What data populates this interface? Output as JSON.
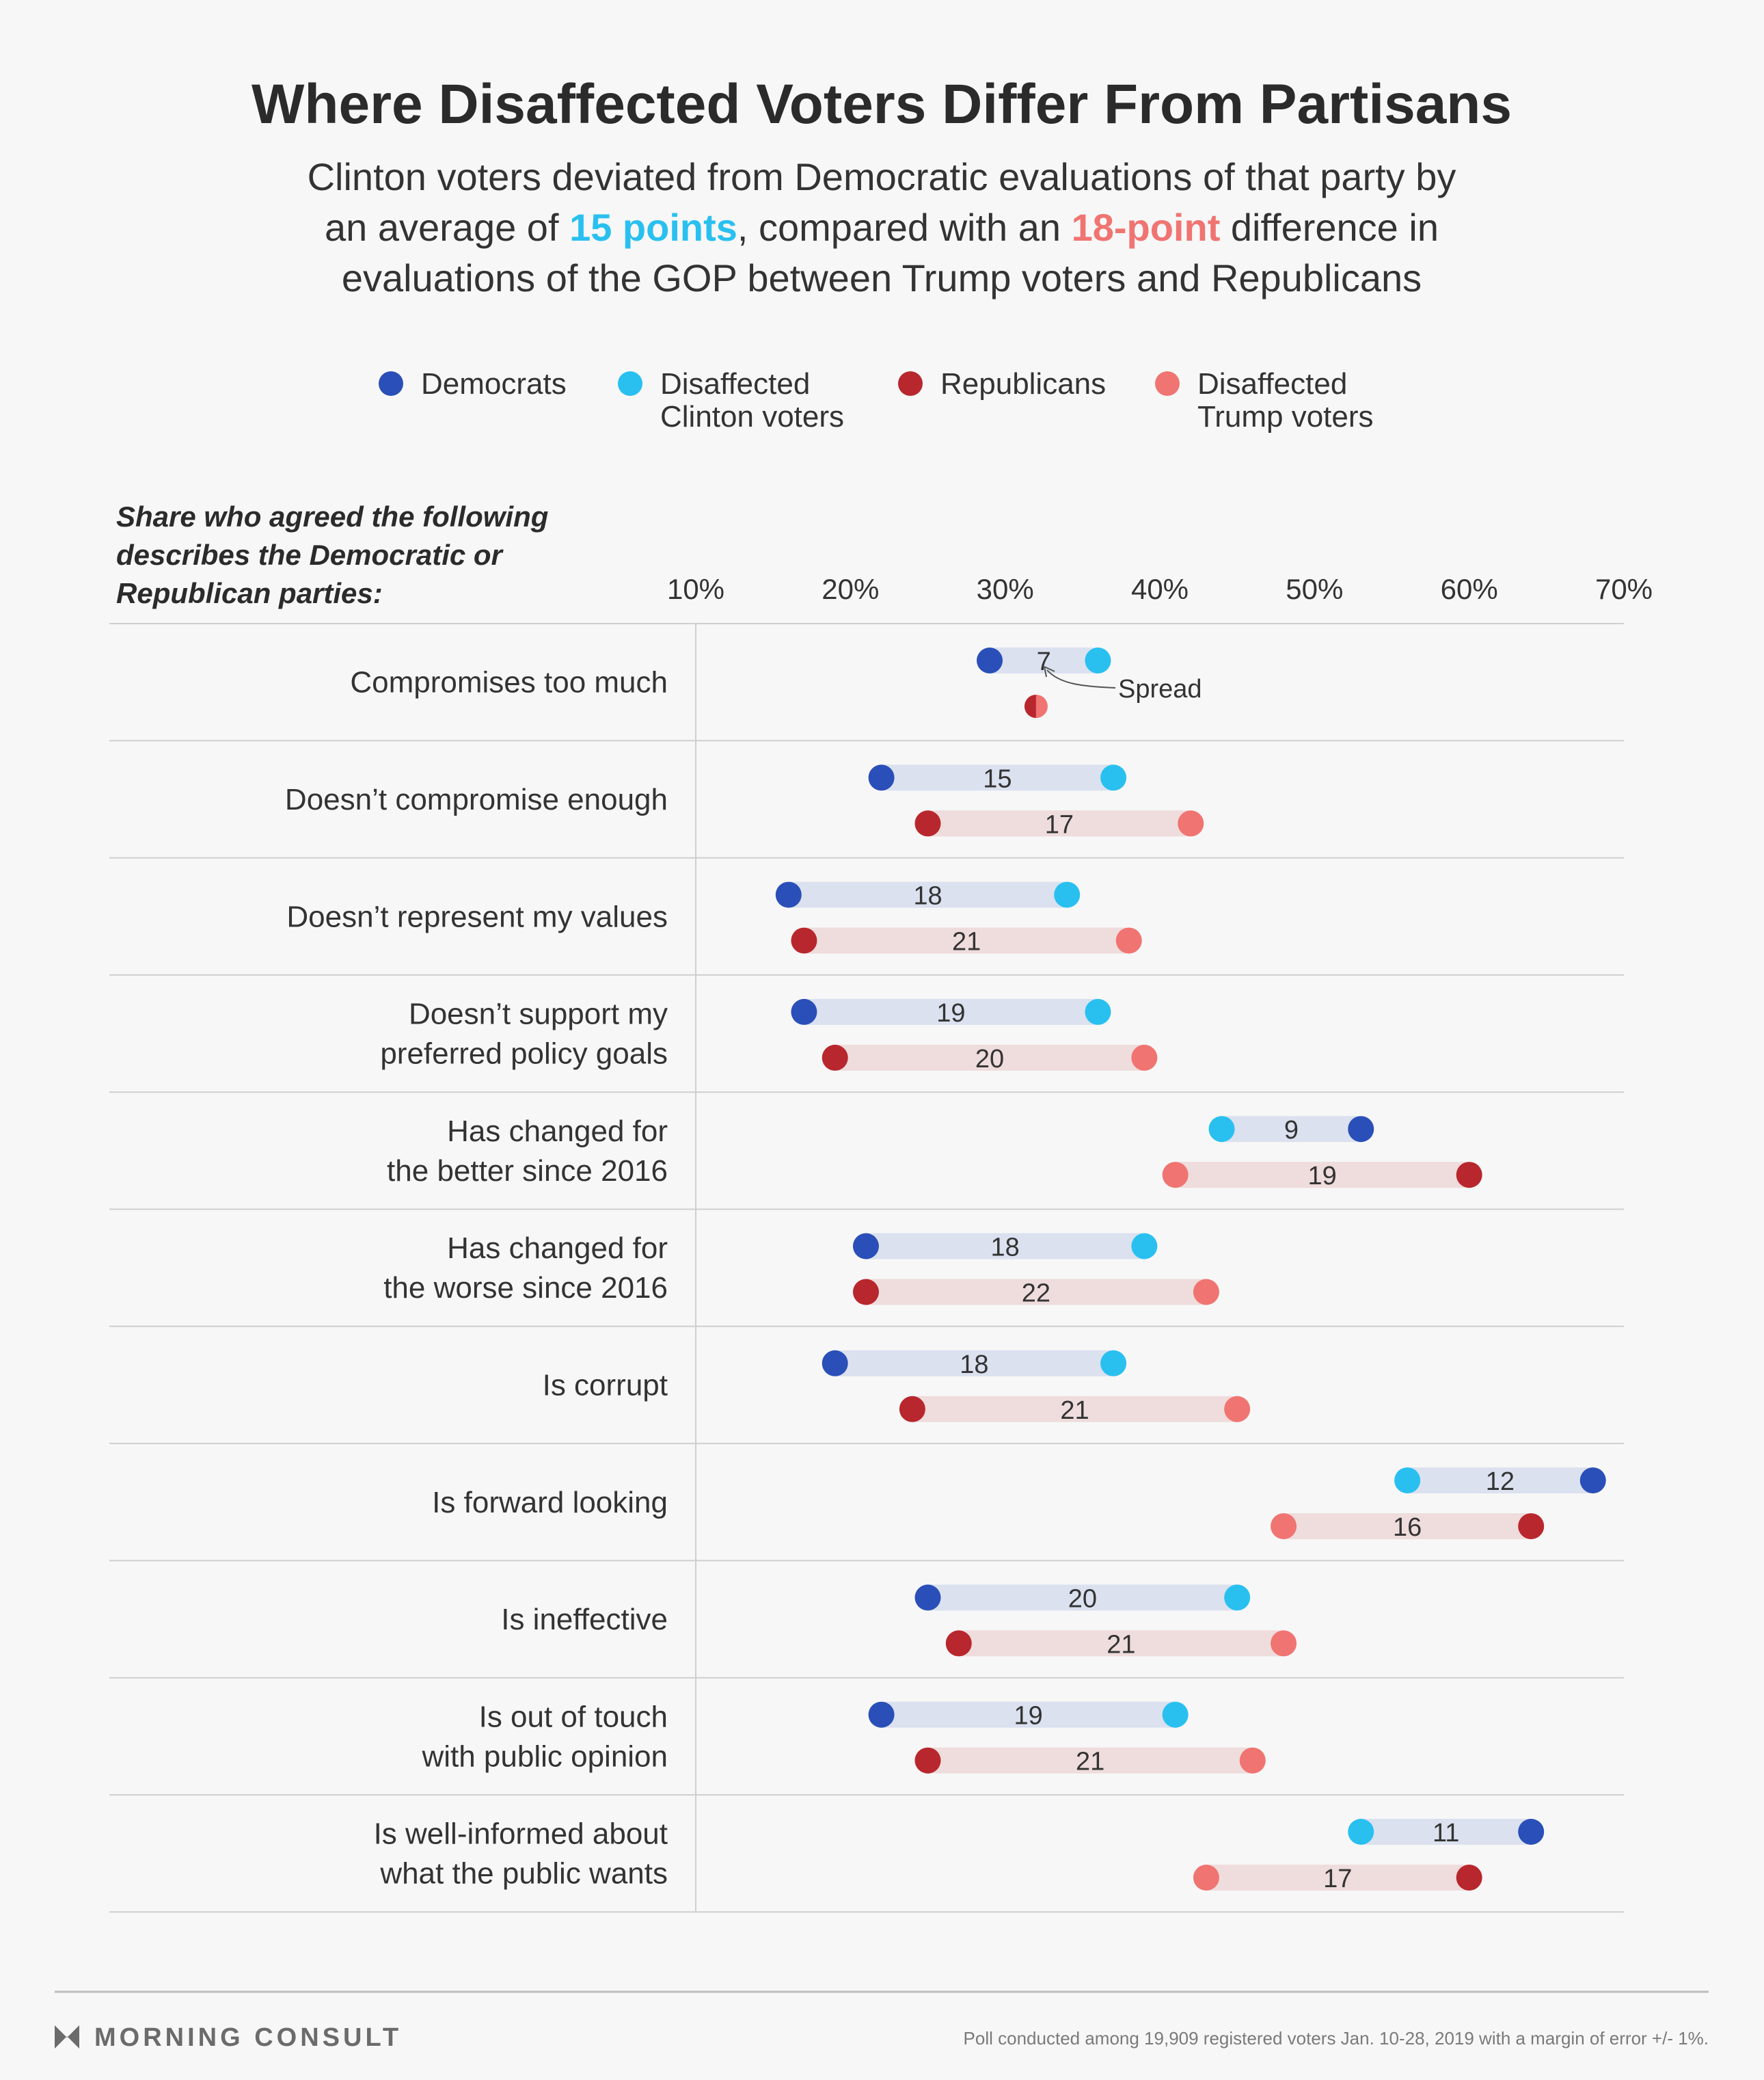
{
  "title": "Where Disaffected Voters Differ From Partisans",
  "subtitle": {
    "line1": "Clinton voters deviated from Democratic evaluations of that party by",
    "line2_a": "an average of ",
    "line2_b": "15 points",
    "line2_c": ", compared with an ",
    "line2_d": "18-point",
    "line2_e": " difference in",
    "line3": "evaluations of the GOP between Trump voters and Republicans"
  },
  "colors": {
    "democrats": "#2a4fb8",
    "disaffected_clinton": "#29c0f0",
    "republicans": "#b8272d",
    "disaffected_trump": "#f07471",
    "dem_bar": "#dbe1ef",
    "rep_bar": "#efdcdc",
    "text": "#333333",
    "grid": "#cfcfcf"
  },
  "legend": [
    {
      "key": "democrats",
      "line1": "Democrats",
      "line2": ""
    },
    {
      "key": "disaffected_clinton",
      "line1": "Disaffected",
      "line2": "Clinton voters"
    },
    {
      "key": "republicans",
      "line1": "Republicans",
      "line2": ""
    },
    {
      "key": "disaffected_trump",
      "line1": "Disaffected",
      "line2": "Trump voters"
    }
  ],
  "question_label": [
    "Share who agreed the following",
    "describes the Democratic or",
    "Republican parties:"
  ],
  "annotation": "Spread",
  "chart_data": {
    "type": "dumbbell",
    "xlim": [
      10,
      70
    ],
    "ticks": [
      10,
      20,
      30,
      40,
      50,
      60,
      70
    ],
    "tick_labels": [
      "10%",
      "20%",
      "30%",
      "40%",
      "50%",
      "60%",
      "70%"
    ],
    "rows": [
      {
        "label": [
          "Compromises too much"
        ],
        "dem": 29,
        "clinton": 36,
        "dem_spread": "7",
        "rep": 32,
        "trump": 32,
        "rep_spread": ""
      },
      {
        "label": [
          "Doesn’t compromise enough"
        ],
        "dem": 22,
        "clinton": 37,
        "dem_spread": "15",
        "rep": 25,
        "trump": 42,
        "rep_spread": "17"
      },
      {
        "label": [
          "Doesn’t represent my values"
        ],
        "dem": 16,
        "clinton": 34,
        "dem_spread": "18",
        "rep": 17,
        "trump": 38,
        "rep_spread": "21"
      },
      {
        "label": [
          "Doesn’t support my",
          "preferred policy goals"
        ],
        "dem": 17,
        "clinton": 36,
        "dem_spread": "19",
        "rep": 19,
        "trump": 39,
        "rep_spread": "20"
      },
      {
        "label": [
          "Has changed for",
          "the better since 2016"
        ],
        "dem": 53,
        "clinton": 44,
        "dem_spread": "9",
        "rep": 60,
        "trump": 41,
        "rep_spread": "19"
      },
      {
        "label": [
          "Has changed for",
          "the worse since 2016"
        ],
        "dem": 21,
        "clinton": 39,
        "dem_spread": "18",
        "rep": 21,
        "trump": 43,
        "rep_spread": "22"
      },
      {
        "label": [
          "Is corrupt"
        ],
        "dem": 19,
        "clinton": 37,
        "dem_spread": "18",
        "rep": 24,
        "trump": 45,
        "rep_spread": "21"
      },
      {
        "label": [
          "Is forward looking"
        ],
        "dem": 68,
        "clinton": 56,
        "dem_spread": "12",
        "rep": 64,
        "trump": 48,
        "rep_spread": "16"
      },
      {
        "label": [
          "Is ineffective"
        ],
        "dem": 25,
        "clinton": 45,
        "dem_spread": "20",
        "rep": 27,
        "trump": 48,
        "rep_spread": "21"
      },
      {
        "label": [
          "Is out of touch",
          "with public opinion"
        ],
        "dem": 22,
        "clinton": 41,
        "dem_spread": "19",
        "rep": 25,
        "trump": 46,
        "rep_spread": "21"
      },
      {
        "label": [
          "Is well-informed about",
          "what the public wants"
        ],
        "dem": 64,
        "clinton": 53,
        "dem_spread": "11",
        "rep": 60,
        "trump": 43,
        "rep_spread": "17"
      }
    ]
  },
  "footer": {
    "brand": "MORNING CONSULT",
    "note": "Poll conducted among 19,909 registered voters Jan. 10-28, 2019 with a margin of error +/- 1%."
  }
}
